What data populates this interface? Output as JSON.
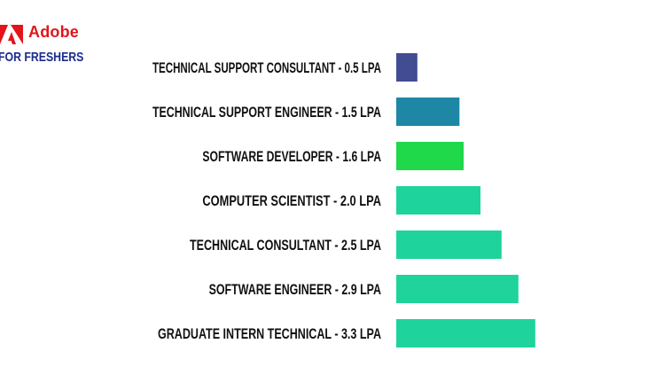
{
  "brand": {
    "name": "Adobe",
    "tagline": "FOR FRESHERS",
    "logo_color": "#e3141b",
    "tagline_color": "#1a2c8c",
    "logo_icon": "adobe-logo-icon"
  },
  "chart_data": {
    "type": "bar",
    "orientation": "horizontal",
    "title": "",
    "xlabel": "",
    "ylabel": "",
    "grid": false,
    "legend": "none",
    "xlim": [
      0,
      3.5
    ],
    "categories": [
      "TECHNICAL SUPPORT CONSULTANT - 0.5 LPA",
      "TECHNICAL SUPPORT ENGINEER - 1.5 LPA",
      "SOFTWARE DEVELOPER - 1.6 LPA",
      "COMPUTER SCIENTIST - 2.0 LPA",
      "TECHNICAL CONSULTANT - 2.5 LPA",
      "SOFTWARE ENGINEER - 2.9 LPA",
      "GRADUATE INTERN TECHNICAL - 3.3 LPA"
    ],
    "values": [
      0.5,
      1.5,
      1.6,
      2.0,
      2.5,
      2.9,
      3.3
    ],
    "colors": [
      "#414c92",
      "#1d87a5",
      "#20d94a",
      "#1ed39c",
      "#1ed39c",
      "#1fd39a",
      "#1ed39c"
    ]
  }
}
